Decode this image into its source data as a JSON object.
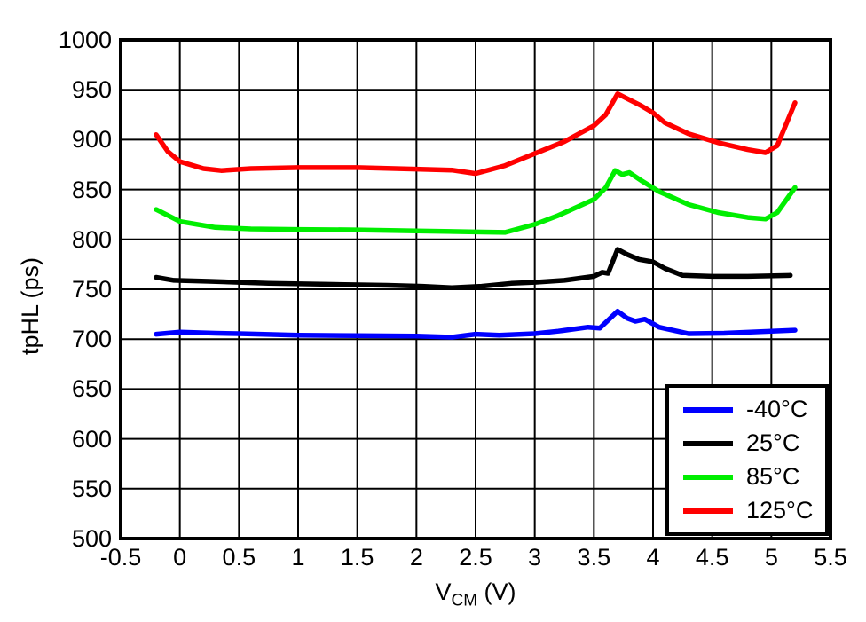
{
  "chart_data": {
    "type": "line",
    "title": "",
    "xlabel": "VCM (V)",
    "xlabel_parts": {
      "main": "V",
      "sub": "CM",
      "rest": " (V)"
    },
    "ylabel": "tpHL (ps)",
    "xlim": [
      -0.5,
      5.5
    ],
    "ylim": [
      500,
      1000
    ],
    "x_ticks": [
      -0.5,
      0,
      0.5,
      1,
      1.5,
      2,
      2.5,
      3,
      3.5,
      4,
      4.5,
      5,
      5.5
    ],
    "y_ticks": [
      500,
      550,
      600,
      650,
      700,
      750,
      800,
      850,
      900,
      950,
      1000
    ],
    "grid": true,
    "legend_position": "bottom-right",
    "frame_color": "#000000",
    "grid_color": "#000000",
    "series": [
      {
        "name": "-40°C",
        "color": "#0000ff",
        "points": [
          [
            -0.2,
            705
          ],
          [
            0,
            707
          ],
          [
            0.3,
            706
          ],
          [
            0.5,
            705.5
          ],
          [
            1,
            704
          ],
          [
            1.5,
            703.5
          ],
          [
            2,
            703
          ],
          [
            2.3,
            702
          ],
          [
            2.5,
            705
          ],
          [
            2.7,
            704
          ],
          [
            3,
            705.5
          ],
          [
            3.2,
            708
          ],
          [
            3.45,
            712
          ],
          [
            3.55,
            711
          ],
          [
            3.7,
            728
          ],
          [
            3.78,
            721
          ],
          [
            3.85,
            718
          ],
          [
            3.93,
            720
          ],
          [
            4.05,
            712
          ],
          [
            4.3,
            705.5
          ],
          [
            4.6,
            706
          ],
          [
            5,
            708
          ],
          [
            5.2,
            709
          ]
        ]
      },
      {
        "name": "25°C",
        "color": "#000000",
        "points": [
          [
            -0.2,
            762
          ],
          [
            -0.05,
            759
          ],
          [
            0.25,
            758
          ],
          [
            0.75,
            756
          ],
          [
            1.25,
            755
          ],
          [
            1.75,
            754
          ],
          [
            2.05,
            753
          ],
          [
            2.3,
            751.5
          ],
          [
            2.55,
            753
          ],
          [
            2.8,
            756
          ],
          [
            3,
            757
          ],
          [
            3.25,
            759
          ],
          [
            3.5,
            763
          ],
          [
            3.57,
            767
          ],
          [
            3.62,
            766
          ],
          [
            3.7,
            790
          ],
          [
            3.78,
            785
          ],
          [
            3.88,
            780
          ],
          [
            4,
            777.5
          ],
          [
            4.1,
            771
          ],
          [
            4.25,
            764
          ],
          [
            4.5,
            763
          ],
          [
            4.8,
            763
          ],
          [
            5.16,
            764
          ]
        ]
      },
      {
        "name": "85°C",
        "color": "#00ee00",
        "points": [
          [
            -0.2,
            830
          ],
          [
            0,
            818
          ],
          [
            0.3,
            812
          ],
          [
            0.6,
            810.5
          ],
          [
            1,
            810
          ],
          [
            1.5,
            809.5
          ],
          [
            2,
            808.5
          ],
          [
            2.5,
            807.5
          ],
          [
            2.75,
            807
          ],
          [
            3,
            815
          ],
          [
            3.2,
            824
          ],
          [
            3.5,
            840
          ],
          [
            3.6,
            852
          ],
          [
            3.68,
            869
          ],
          [
            3.74,
            865
          ],
          [
            3.8,
            867
          ],
          [
            3.9,
            859
          ],
          [
            4.05,
            848
          ],
          [
            4.3,
            835
          ],
          [
            4.55,
            827
          ],
          [
            4.8,
            822
          ],
          [
            4.95,
            820.5
          ],
          [
            5.05,
            827
          ],
          [
            5.2,
            852
          ]
        ]
      },
      {
        "name": "125°C",
        "color": "#ff0000",
        "points": [
          [
            -0.2,
            905
          ],
          [
            -0.1,
            888
          ],
          [
            0,
            878
          ],
          [
            0.2,
            871
          ],
          [
            0.35,
            869
          ],
          [
            0.6,
            871
          ],
          [
            1,
            872
          ],
          [
            1.5,
            872
          ],
          [
            2,
            870.5
          ],
          [
            2.3,
            869.5
          ],
          [
            2.5,
            866
          ],
          [
            2.75,
            874
          ],
          [
            3,
            886
          ],
          [
            3.25,
            898
          ],
          [
            3.5,
            914
          ],
          [
            3.6,
            925
          ],
          [
            3.7,
            946
          ],
          [
            3.8,
            940
          ],
          [
            3.9,
            934
          ],
          [
            4,
            927
          ],
          [
            4.1,
            917
          ],
          [
            4.3,
            906
          ],
          [
            4.55,
            897
          ],
          [
            4.8,
            890
          ],
          [
            4.95,
            887
          ],
          [
            5.05,
            894
          ],
          [
            5.2,
            937
          ]
        ]
      }
    ]
  }
}
